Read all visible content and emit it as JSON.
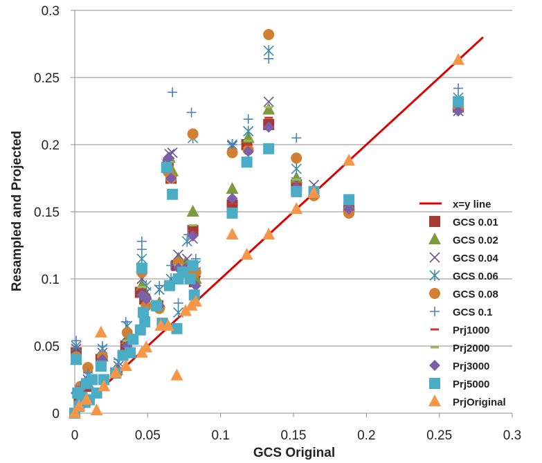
{
  "chart_data": {
    "type": "scatter",
    "title": "",
    "xlabel": "GCS Original",
    "ylabel": "Resampled and Projected",
    "xlim": [
      0,
      0.3
    ],
    "ylim": [
      0,
      0.3
    ],
    "xticks": [
      0,
      0.05,
      0.1,
      0.15,
      0.2,
      0.25,
      0.3
    ],
    "yticks": [
      0,
      0.05,
      0.1,
      0.15,
      0.2,
      0.25,
      0.3
    ],
    "xtick_labels": [
      "0",
      "0.05",
      "0.1",
      "0.15",
      "0.2",
      "0.25",
      "0.3"
    ],
    "ytick_labels": [
      "0",
      "0.05",
      "0.1",
      "0.15",
      "0.2",
      "0.25",
      "0.3"
    ],
    "grid": "horizontal",
    "legend_position": "right",
    "line": {
      "name": "x=y line",
      "color": "#dd0000",
      "x": [
        0,
        0.28
      ],
      "y": [
        0,
        0.28
      ]
    },
    "series": [
      {
        "name": "GCS 0.01",
        "marker": "square",
        "color": "#a33b34",
        "points": [
          [
            0.001,
            0.045
          ],
          [
            0.003,
            0.01
          ],
          [
            0.008,
            0.02
          ],
          [
            0.018,
            0.04
          ],
          [
            0.028,
            0.03
          ],
          [
            0.035,
            0.05
          ],
          [
            0.045,
            0.09
          ],
          [
            0.048,
            0.085
          ],
          [
            0.057,
            0.08
          ],
          [
            0.064,
            0.185
          ],
          [
            0.066,
            0.175
          ],
          [
            0.07,
            0.11
          ],
          [
            0.075,
            0.11
          ],
          [
            0.081,
            0.136
          ],
          [
            0.082,
            0.098
          ],
          [
            0.108,
            0.155
          ],
          [
            0.118,
            0.2
          ],
          [
            0.133,
            0.215
          ],
          [
            0.152,
            0.17
          ],
          [
            0.164,
            0.165
          ],
          [
            0.188,
            0.153
          ],
          [
            0.263,
            0.228
          ]
        ]
      },
      {
        "name": "GCS 0.02",
        "marker": "triangle",
        "color": "#7f9a3e",
        "points": [
          [
            0.001,
            0.04
          ],
          [
            0.004,
            0.012
          ],
          [
            0.009,
            0.022
          ],
          [
            0.019,
            0.042
          ],
          [
            0.029,
            0.032
          ],
          [
            0.036,
            0.055
          ],
          [
            0.046,
            0.095
          ],
          [
            0.049,
            0.088
          ],
          [
            0.058,
            0.082
          ],
          [
            0.065,
            0.19
          ],
          [
            0.067,
            0.18
          ],
          [
            0.071,
            0.115
          ],
          [
            0.076,
            0.112
          ],
          [
            0.081,
            0.15
          ],
          [
            0.083,
            0.1
          ],
          [
            0.108,
            0.167
          ],
          [
            0.119,
            0.205
          ],
          [
            0.133,
            0.226
          ],
          [
            0.152,
            0.175
          ],
          [
            0.164,
            0.165
          ],
          [
            0.188,
            0.155
          ],
          [
            0.263,
            0.23
          ]
        ]
      },
      {
        "name": "GCS 0.04",
        "marker": "x",
        "color": "#6a52a0",
        "points": [
          [
            0.001,
            0.048
          ],
          [
            0.004,
            0.015
          ],
          [
            0.009,
            0.025
          ],
          [
            0.019,
            0.045
          ],
          [
            0.03,
            0.035
          ],
          [
            0.036,
            0.058
          ],
          [
            0.046,
            0.1
          ],
          [
            0.049,
            0.09
          ],
          [
            0.058,
            0.092
          ],
          [
            0.065,
            0.193
          ],
          [
            0.067,
            0.194
          ],
          [
            0.071,
            0.118
          ],
          [
            0.077,
            0.115
          ],
          [
            0.081,
            0.13
          ],
          [
            0.083,
            0.105
          ],
          [
            0.108,
            0.199
          ],
          [
            0.119,
            0.21
          ],
          [
            0.133,
            0.232
          ],
          [
            0.152,
            0.172
          ],
          [
            0.164,
            0.17
          ],
          [
            0.188,
            0.152
          ],
          [
            0.263,
            0.225
          ]
        ]
      },
      {
        "name": "GCS 0.06",
        "marker": "asterisk",
        "color": "#3a8fa8",
        "points": [
          [
            0.001,
            0.05
          ],
          [
            0.004,
            0.018
          ],
          [
            0.009,
            0.028
          ],
          [
            0.019,
            0.048
          ],
          [
            0.03,
            0.038
          ],
          [
            0.036,
            0.065
          ],
          [
            0.046,
            0.115
          ],
          [
            0.049,
            0.095
          ],
          [
            0.058,
            0.092
          ],
          [
            0.064,
            0.185
          ],
          [
            0.066,
            0.1
          ],
          [
            0.071,
            0.075
          ],
          [
            0.077,
            0.128
          ],
          [
            0.081,
            0.205
          ],
          [
            0.083,
            0.11
          ],
          [
            0.108,
            0.2
          ],
          [
            0.119,
            0.21
          ],
          [
            0.133,
            0.27
          ],
          [
            0.152,
            0.182
          ],
          [
            0.164,
            0.165
          ],
          [
            0.188,
            0.152
          ],
          [
            0.263,
            0.235
          ]
        ]
      },
      {
        "name": "GCS 0.08",
        "marker": "circle",
        "color": "#d17f33",
        "points": [
          [
            0.001,
            0.042
          ],
          [
            0.004,
            0.02
          ],
          [
            0.009,
            0.034
          ],
          [
            0.019,
            0.042
          ],
          [
            0.029,
            0.03
          ],
          [
            0.036,
            0.06
          ],
          [
            0.046,
            0.105
          ],
          [
            0.049,
            0.08
          ],
          [
            0.058,
            0.078
          ],
          [
            0.064,
            0.18
          ],
          [
            0.066,
            0.175
          ],
          [
            0.071,
            0.112
          ],
          [
            0.076,
            0.105
          ],
          [
            0.081,
            0.208
          ],
          [
            0.083,
            0.105
          ],
          [
            0.108,
            0.194
          ],
          [
            0.119,
            0.196
          ],
          [
            0.133,
            0.282
          ],
          [
            0.152,
            0.19
          ],
          [
            0.164,
            0.162
          ],
          [
            0.188,
            0.149
          ],
          [
            0.263,
            0.228
          ]
        ]
      },
      {
        "name": "GCS 0.1",
        "marker": "plus",
        "color": "#4a7fc0",
        "points": [
          [
            0.001,
            0.054
          ],
          [
            0.004,
            0.02
          ],
          [
            0.009,
            0.03
          ],
          [
            0.019,
            0.05
          ],
          [
            0.03,
            0.04
          ],
          [
            0.035,
            0.068
          ],
          [
            0.046,
            0.128
          ],
          [
            0.046,
            0.122
          ],
          [
            0.058,
            0.095
          ],
          [
            0.064,
            0.188
          ],
          [
            0.066,
            0.11
          ],
          [
            0.067,
            0.239
          ],
          [
            0.071,
            0.082
          ],
          [
            0.078,
            0.133
          ],
          [
            0.08,
            0.224
          ],
          [
            0.083,
            0.115
          ],
          [
            0.108,
            0.2
          ],
          [
            0.119,
            0.219
          ],
          [
            0.133,
            0.264
          ],
          [
            0.152,
            0.205
          ],
          [
            0.164,
            0.166
          ],
          [
            0.188,
            0.157
          ],
          [
            0.263,
            0.242
          ]
        ]
      },
      {
        "name": "Prj1000",
        "marker": "dash",
        "color": "#d0342c",
        "points": [
          [
            0.001,
            0.043
          ],
          [
            0.009,
            0.02
          ],
          [
            0.019,
            0.04
          ],
          [
            0.036,
            0.052
          ],
          [
            0.046,
            0.092
          ],
          [
            0.058,
            0.08
          ],
          [
            0.065,
            0.185
          ],
          [
            0.071,
            0.108
          ],
          [
            0.081,
            0.135
          ],
          [
            0.108,
            0.156
          ],
          [
            0.119,
            0.2
          ],
          [
            0.133,
            0.22
          ],
          [
            0.152,
            0.171
          ],
          [
            0.188,
            0.155
          ],
          [
            0.263,
            0.229
          ]
        ]
      },
      {
        "name": "Prj2000",
        "marker": "dash",
        "color": "#9bbb59",
        "points": [
          [
            0.001,
            0.041
          ],
          [
            0.009,
            0.022
          ],
          [
            0.019,
            0.041
          ],
          [
            0.036,
            0.054
          ],
          [
            0.046,
            0.094
          ],
          [
            0.058,
            0.081
          ],
          [
            0.065,
            0.187
          ],
          [
            0.071,
            0.11
          ],
          [
            0.081,
            0.14
          ],
          [
            0.108,
            0.16
          ],
          [
            0.119,
            0.203
          ],
          [
            0.133,
            0.228
          ],
          [
            0.152,
            0.174
          ],
          [
            0.188,
            0.156
          ],
          [
            0.263,
            0.231
          ]
        ]
      },
      {
        "name": "Prj3000",
        "marker": "diamond",
        "color": "#7d5fa8",
        "points": [
          [
            0.001,
            0.015
          ],
          [
            0.004,
            0.01
          ],
          [
            0.009,
            0.025
          ],
          [
            0.019,
            0.04
          ],
          [
            0.03,
            0.032
          ],
          [
            0.036,
            0.05
          ],
          [
            0.046,
            0.088
          ],
          [
            0.049,
            0.085
          ],
          [
            0.058,
            0.08
          ],
          [
            0.064,
            0.19
          ],
          [
            0.066,
            0.175
          ],
          [
            0.071,
            0.108
          ],
          [
            0.076,
            0.108
          ],
          [
            0.081,
            0.132
          ],
          [
            0.083,
            0.095
          ],
          [
            0.108,
            0.16
          ],
          [
            0.119,
            0.195
          ],
          [
            0.133,
            0.213
          ],
          [
            0.152,
            0.168
          ],
          [
            0.164,
            0.165
          ],
          [
            0.188,
            0.152
          ],
          [
            0.263,
            0.225
          ]
        ]
      },
      {
        "name": "Prj5000",
        "marker": "square",
        "color": "#4bacc6",
        "points": [
          [
            0.0,
            0.0
          ],
          [
            0.001,
            0.04
          ],
          [
            0.002,
            0.015
          ],
          [
            0.003,
            0.005
          ],
          [
            0.005,
            0.012
          ],
          [
            0.007,
            0.008
          ],
          [
            0.008,
            0.022
          ],
          [
            0.01,
            0.01
          ],
          [
            0.012,
            0.025
          ],
          [
            0.015,
            0.015
          ],
          [
            0.018,
            0.035
          ],
          [
            0.02,
            0.025
          ],
          [
            0.028,
            0.03
          ],
          [
            0.033,
            0.043
          ],
          [
            0.038,
            0.045
          ],
          [
            0.04,
            0.055
          ],
          [
            0.045,
            0.062
          ],
          [
            0.046,
            0.108
          ],
          [
            0.047,
            0.075
          ],
          [
            0.048,
            0.068
          ],
          [
            0.056,
            0.08
          ],
          [
            0.06,
            0.067
          ],
          [
            0.063,
            0.183
          ],
          [
            0.065,
            0.095
          ],
          [
            0.067,
            0.163
          ],
          [
            0.07,
            0.063
          ],
          [
            0.071,
            0.1
          ],
          [
            0.074,
            0.105
          ],
          [
            0.079,
            0.1
          ],
          [
            0.081,
            0.11
          ],
          [
            0.082,
            0.088
          ],
          [
            0.108,
            0.149
          ],
          [
            0.118,
            0.187
          ],
          [
            0.133,
            0.197
          ],
          [
            0.152,
            0.165
          ],
          [
            0.164,
            0.165
          ],
          [
            0.188,
            0.159
          ],
          [
            0.263,
            0.232
          ]
        ]
      },
      {
        "name": "PrjOriginal",
        "marker": "triangle",
        "color": "#f79646",
        "points": [
          [
            0.0,
            0.0
          ],
          [
            0.003,
            0.005
          ],
          [
            0.008,
            0.01
          ],
          [
            0.015,
            0.002
          ],
          [
            0.018,
            0.06
          ],
          [
            0.02,
            0.02
          ],
          [
            0.028,
            0.03
          ],
          [
            0.035,
            0.035
          ],
          [
            0.046,
            0.045
          ],
          [
            0.049,
            0.049
          ],
          [
            0.059,
            0.065
          ],
          [
            0.064,
            0.065
          ],
          [
            0.07,
            0.028
          ],
          [
            0.076,
            0.076
          ],
          [
            0.08,
            0.08
          ],
          [
            0.083,
            0.083
          ],
          [
            0.108,
            0.133
          ],
          [
            0.118,
            0.118
          ],
          [
            0.133,
            0.133
          ],
          [
            0.152,
            0.152
          ],
          [
            0.164,
            0.164
          ],
          [
            0.188,
            0.188
          ],
          [
            0.263,
            0.263
          ]
        ]
      }
    ]
  }
}
